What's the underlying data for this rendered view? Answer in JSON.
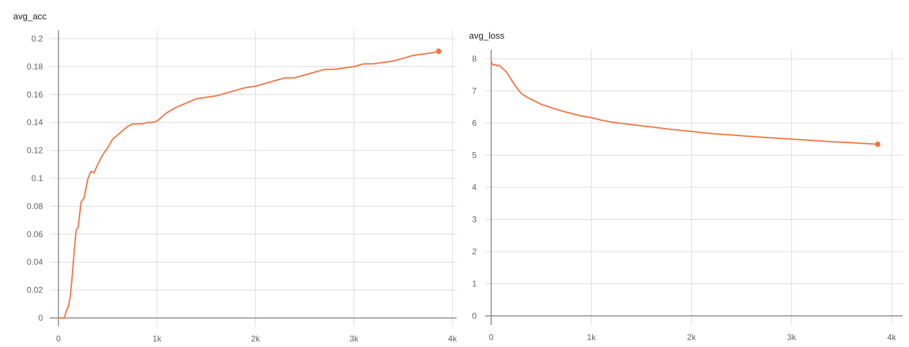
{
  "chart_data": [
    {
      "type": "line",
      "title": "avg_acc",
      "xlabel": "",
      "ylabel": "",
      "xlim": [
        0,
        4000
      ],
      "ylim": [
        0,
        0.2
      ],
      "xticks": [
        0,
        1000,
        2000,
        3000,
        4000
      ],
      "xtick_labels": [
        "0",
        "1k",
        "2k",
        "3k",
        "4k"
      ],
      "yticks": [
        0,
        0.02,
        0.04,
        0.06,
        0.08,
        0.1,
        0.12,
        0.14,
        0.16,
        0.18,
        0.2
      ],
      "ytick_labels": [
        "0",
        "0.02",
        "0.04",
        "0.06",
        "0.08",
        "0.1",
        "0.12",
        "0.14",
        "0.16",
        "0.18",
        "0.2"
      ],
      "grid": true,
      "color": "#f2774a",
      "series": [
        {
          "x": [
            0,
            60,
            80,
            100,
            120,
            140,
            160,
            180,
            200,
            230,
            260,
            300,
            330,
            360,
            400,
            450,
            500,
            550,
            600,
            650,
            700,
            750,
            800,
            850,
            900,
            950,
            1000,
            1050,
            1100,
            1150,
            1200,
            1300,
            1400,
            1500,
            1600,
            1700,
            1800,
            1900,
            2000,
            2100,
            2200,
            2300,
            2400,
            2500,
            2600,
            2700,
            2800,
            2900,
            3000,
            3100,
            3200,
            3300,
            3400,
            3500,
            3600,
            3700,
            3800,
            3860
          ],
          "y": [
            0,
            0,
            0.005,
            0.008,
            0.015,
            0.03,
            0.048,
            0.063,
            0.065,
            0.083,
            0.086,
            0.1,
            0.105,
            0.104,
            0.11,
            0.117,
            0.122,
            0.128,
            0.131,
            0.134,
            0.137,
            0.139,
            0.139,
            0.139,
            0.14,
            0.14,
            0.141,
            0.144,
            0.147,
            0.149,
            0.151,
            0.154,
            0.157,
            0.158,
            0.159,
            0.161,
            0.163,
            0.165,
            0.166,
            0.168,
            0.17,
            0.172,
            0.172,
            0.174,
            0.176,
            0.178,
            0.178,
            0.179,
            0.18,
            0.182,
            0.182,
            0.183,
            0.184,
            0.186,
            0.188,
            0.189,
            0.19,
            0.191
          ]
        }
      ]
    },
    {
      "type": "line",
      "title": "avg_loss",
      "xlabel": "",
      "ylabel": "",
      "xlim": [
        0,
        4000
      ],
      "ylim": [
        0,
        8
      ],
      "xticks": [
        0,
        1000,
        2000,
        3000,
        4000
      ],
      "xtick_labels": [
        "0",
        "1k",
        "2k",
        "3k",
        "4k"
      ],
      "yticks": [
        0,
        1,
        2,
        3,
        4,
        5,
        6,
        7,
        8
      ],
      "ytick_labels": [
        "0",
        "1",
        "2",
        "3",
        "4",
        "5",
        "6",
        "7",
        "8"
      ],
      "grid": true,
      "color": "#f2774a",
      "series": [
        {
          "x": [
            0,
            20,
            40,
            60,
            80,
            100,
            150,
            200,
            250,
            300,
            350,
            400,
            450,
            500,
            600,
            700,
            800,
            900,
            1000,
            1100,
            1200,
            1400,
            1600,
            1800,
            2000,
            2200,
            2400,
            2600,
            2800,
            3000,
            3200,
            3400,
            3600,
            3860
          ],
          "y": [
            7.9,
            7.8,
            7.82,
            7.78,
            7.8,
            7.74,
            7.6,
            7.35,
            7.12,
            6.92,
            6.82,
            6.74,
            6.66,
            6.58,
            6.48,
            6.38,
            6.3,
            6.22,
            6.17,
            6.09,
            6.03,
            5.95,
            5.88,
            5.8,
            5.74,
            5.67,
            5.63,
            5.58,
            5.54,
            5.5,
            5.46,
            5.42,
            5.39,
            5.34
          ]
        }
      ]
    }
  ]
}
